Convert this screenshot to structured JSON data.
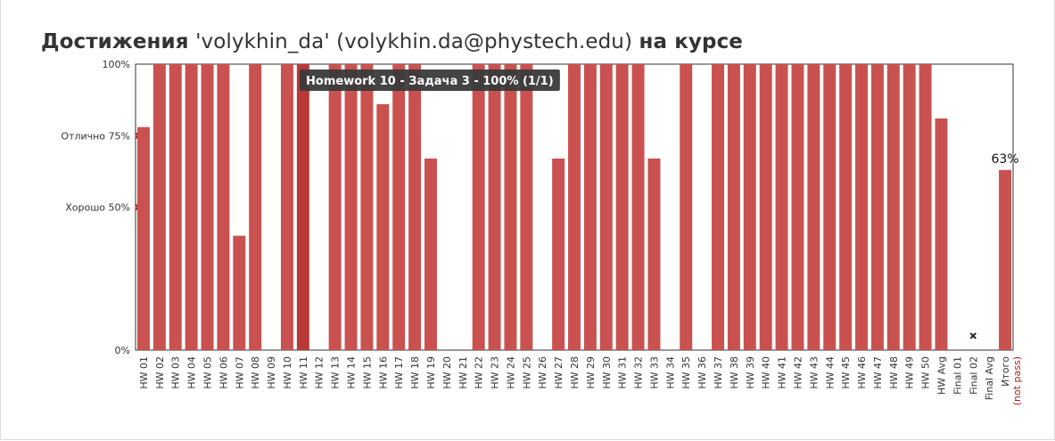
{
  "page": {
    "title_prefix": "Достижения",
    "title_user": "'volykhin_da' (volykhin.da@phystech.edu)",
    "title_suffix": "на курсе"
  },
  "colors": {
    "bar": "#c9514f",
    "bar_hover": "#b83a37",
    "threshold_marker": "#b22222",
    "tooltip_bg": "#3a3a3a",
    "tooltip_text": "#ffffff",
    "not_pass": "#b22222"
  },
  "chart_data": {
    "type": "bar",
    "ylim": [
      0,
      100
    ],
    "y_ticks": [
      {
        "value": 0,
        "label": "0%"
      },
      {
        "value": 100,
        "label": "100%"
      }
    ],
    "thresholds": [
      {
        "value": 75,
        "label": "Отлично 75%"
      },
      {
        "value": 50,
        "label": "Хорошо 50%"
      }
    ],
    "categories": [
      "HW 01",
      "HW 02",
      "HW 03",
      "HW 04",
      "HW 05",
      "HW 06",
      "HW 07",
      "HW 08",
      "HW 09",
      "HW 10",
      "HW 11",
      "HW 12",
      "HW 13",
      "HW 14",
      "HW 15",
      "HW 16",
      "HW 17",
      "HW 18",
      "HW 19",
      "HW 20",
      "HW 21",
      "HW 22",
      "HW 23",
      "HW 24",
      "HW 25",
      "HW 26",
      "HW 27",
      "HW 28",
      "HW 29",
      "HW 30",
      "HW 31",
      "HW 32",
      "HW 33",
      "HW 34",
      "HW 35",
      "HW 36",
      "HW 37",
      "HW 38",
      "HW 39",
      "HW 40",
      "HW 41",
      "HW 42",
      "HW 43",
      "HW 44",
      "HW 45",
      "HW 46",
      "HW 47",
      "HW 48",
      "HW 49",
      "HW 50",
      "HW Avg",
      "Final 01",
      "Final 02",
      "Final Avg",
      "Итого"
    ],
    "values": [
      78,
      100,
      100,
      100,
      100,
      100,
      40,
      100,
      0,
      100,
      100,
      0,
      100,
      100,
      100,
      86,
      100,
      100,
      67,
      0,
      0,
      100,
      100,
      100,
      100,
      0,
      67,
      100,
      100,
      100,
      100,
      100,
      67,
      0,
      100,
      0,
      100,
      100,
      100,
      100,
      100,
      100,
      100,
      100,
      100,
      100,
      100,
      100,
      100,
      100,
      81,
      0,
      0,
      0,
      63
    ],
    "highlighted_index": 10,
    "missing_markers": [
      {
        "category": "Final 02",
        "value": 5
      }
    ],
    "data_labels": [
      {
        "category": "Итого",
        "text": "63%"
      }
    ],
    "final_sublabel": "(not pass)",
    "tooltip": {
      "category": "HW 11",
      "text": "Homework 10 - Задача 3 - 100% (1/1)"
    }
  }
}
